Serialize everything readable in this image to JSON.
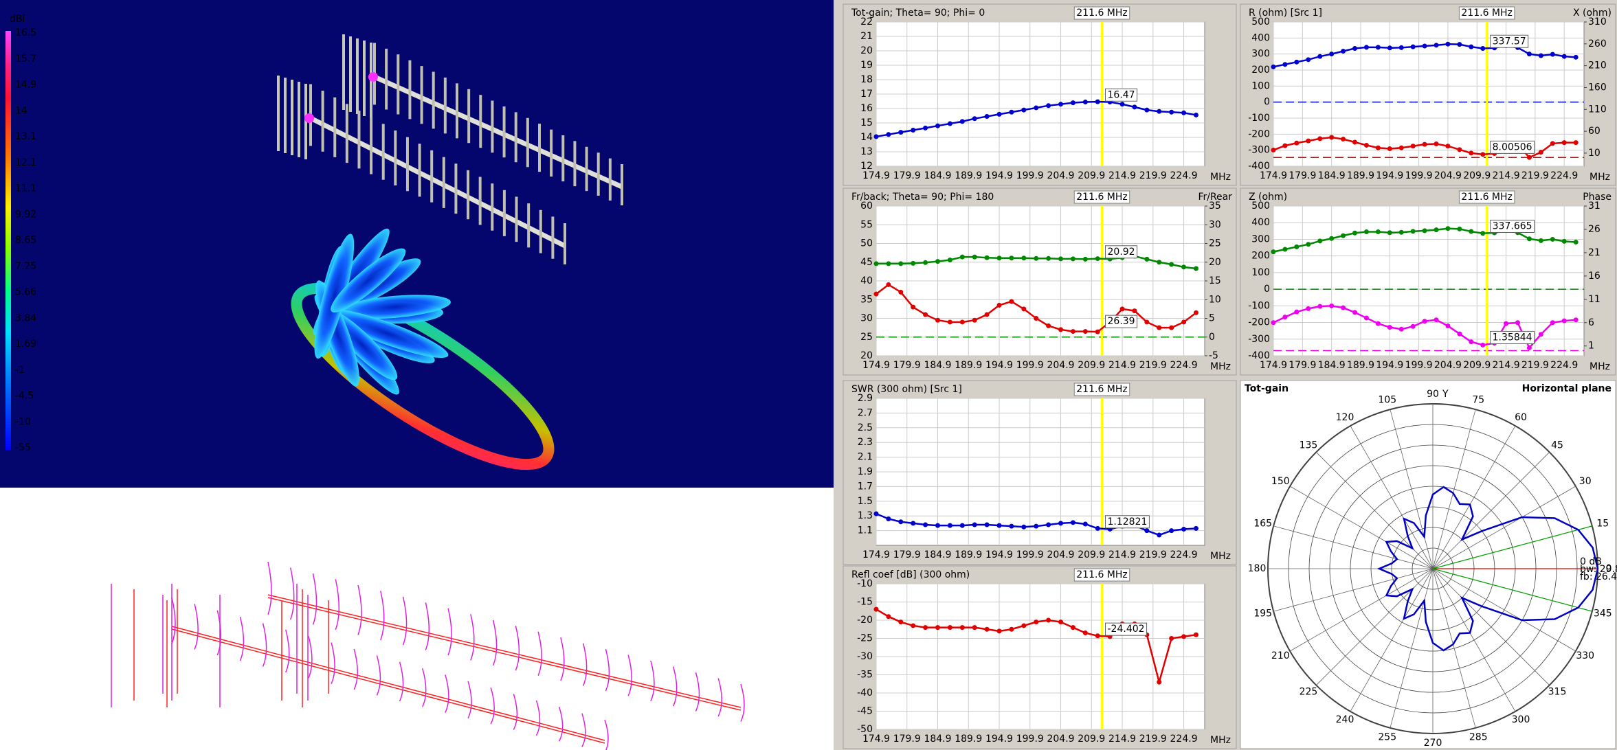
{
  "colorbar": {
    "title": "dBi",
    "labels": [
      16.5,
      15.7,
      14.9,
      14,
      13.1,
      12.1,
      11.1,
      9.92,
      8.65,
      7.25,
      5.66,
      3.84,
      1.69,
      -1,
      -4.5,
      -10,
      -55
    ]
  },
  "chart_data": [
    {
      "type": "line",
      "x_unit": "MHz",
      "grid": true,
      "zero_lines": true,
      "cursor_color": "#ffff00",
      "cursor": {
        "value": 211.6,
        "label": "211.6 MHz"
      },
      "x": [
        174.9,
        176.9,
        178.9,
        180.9,
        182.9,
        184.9,
        186.9,
        188.9,
        190.9,
        192.9,
        194.9,
        196.9,
        198.9,
        200.9,
        202.9,
        204.9,
        206.9,
        208.9,
        210.9,
        212.9,
        214.9,
        216.9,
        218.9,
        220.9,
        222.9,
        224.9,
        226.9
      ],
      "xlim": [
        174.9,
        228.3
      ],
      "xticks": [
        174.9,
        179.9,
        184.9,
        189.9,
        194.9,
        199.9,
        204.9,
        209.9,
        214.9,
        219.9,
        224.9
      ],
      "ylim": [
        12,
        22
      ],
      "yticks": [
        12,
        13,
        14,
        15,
        16,
        17,
        18,
        19,
        20,
        21,
        22
      ],
      "series": [
        {
          "name": "Tot-gain; Theta= 90; Phi= 0",
          "color": "#0000cc",
          "cursor_value": 16.47,
          "values": [
            14.05,
            14.2,
            14.35,
            14.5,
            14.65,
            14.8,
            14.95,
            15.1,
            15.3,
            15.45,
            15.6,
            15.75,
            15.9,
            16.05,
            16.2,
            16.3,
            16.4,
            16.45,
            16.47,
            16.45,
            16.3,
            16.1,
            15.9,
            15.8,
            15.75,
            15.7,
            15.55
          ]
        }
      ]
    },
    {
      "type": "line",
      "x_unit": "MHz",
      "grid": true,
      "zero_lines": true,
      "cursor_color": "#ffff00",
      "cursor": {
        "value": 211.6,
        "label": "211.6 MHz"
      },
      "x": [
        174.9,
        176.9,
        178.9,
        180.9,
        182.9,
        184.9,
        186.9,
        188.9,
        190.9,
        192.9,
        194.9,
        196.9,
        198.9,
        200.9,
        202.9,
        204.9,
        206.9,
        208.9,
        210.9,
        212.9,
        214.9,
        216.9,
        218.9,
        220.9,
        222.9,
        224.9,
        226.9
      ],
      "xlim": [
        174.9,
        228.3
      ],
      "xticks": [
        174.9,
        179.9,
        184.9,
        189.9,
        194.9,
        199.9,
        204.9,
        209.9,
        214.9,
        219.9,
        224.9
      ],
      "ylim": [
        20,
        60
      ],
      "yticks": [
        20,
        25,
        30,
        35,
        40,
        45,
        50,
        55,
        60
      ],
      "y2lim": [
        -5,
        35
      ],
      "y2ticks": [
        -5,
        0,
        5,
        10,
        15,
        20,
        25,
        30,
        35
      ],
      "series": [
        {
          "name": "Fr/back; Theta= 90; Phi= 180",
          "color": "#e00000",
          "cursor_value": 26.39,
          "values": [
            36.5,
            39,
            37,
            33,
            31,
            29.5,
            29,
            29,
            29.5,
            31,
            33.5,
            34.5,
            32.5,
            30,
            28,
            27,
            26.5,
            26.5,
            26.4,
            29,
            32.5,
            32,
            29,
            27.5,
            27.5,
            29,
            31.5
          ]
        },
        {
          "name": "Fr/Rear",
          "color": "#008800",
          "axis": "y2",
          "cursor_value": 20.92,
          "values": [
            19.6,
            19.6,
            19.6,
            19.7,
            19.9,
            20.2,
            20.6,
            21.4,
            21.4,
            21.2,
            21.1,
            21.1,
            21.1,
            21.0,
            21.0,
            20.9,
            20.9,
            20.8,
            20.95,
            20.85,
            21.2,
            21.6,
            20.8,
            20.0,
            19.4,
            18.7,
            18.3
          ]
        }
      ]
    },
    {
      "type": "line",
      "x_unit": "MHz",
      "grid": true,
      "zero_lines": true,
      "cursor_color": "#ffff00",
      "cursor": {
        "value": 211.6,
        "label": "211.6 MHz"
      },
      "x": [
        174.9,
        176.9,
        178.9,
        180.9,
        182.9,
        184.9,
        186.9,
        188.9,
        190.9,
        192.9,
        194.9,
        196.9,
        198.9,
        200.9,
        202.9,
        204.9,
        206.9,
        208.9,
        210.9,
        212.9,
        214.9,
        216.9,
        218.9,
        220.9,
        222.9,
        224.9,
        226.9
      ],
      "xlim": [
        174.9,
        228.3
      ],
      "xticks": [
        174.9,
        179.9,
        184.9,
        189.9,
        194.9,
        199.9,
        204.9,
        209.9,
        214.9,
        219.9,
        224.9
      ],
      "ylim": [
        0.9,
        2.9
      ],
      "yticks": [
        1.1,
        1.3,
        1.5,
        1.7,
        1.9,
        2.1,
        2.3,
        2.5,
        2.7,
        2.9
      ],
      "series": [
        {
          "name": "SWR (300 ohm) [Src 1]",
          "color": "#0000cc",
          "cursor_value": 1.12821,
          "values": [
            1.33,
            1.26,
            1.22,
            1.2,
            1.18,
            1.17,
            1.17,
            1.17,
            1.18,
            1.18,
            1.17,
            1.16,
            1.15,
            1.16,
            1.18,
            1.2,
            1.21,
            1.19,
            1.13,
            1.12,
            1.16,
            1.17,
            1.1,
            1.04,
            1.1,
            1.12,
            1.13
          ]
        }
      ]
    },
    {
      "type": "line",
      "x_unit": "MHz",
      "grid": true,
      "zero_lines": true,
      "cursor_color": "#ffff00",
      "cursor": {
        "value": 211.6,
        "label": "211.6 MHz"
      },
      "x": [
        174.9,
        176.9,
        178.9,
        180.9,
        182.9,
        184.9,
        186.9,
        188.9,
        190.9,
        192.9,
        194.9,
        196.9,
        198.9,
        200.9,
        202.9,
        204.9,
        206.9,
        208.9,
        210.9,
        212.9,
        214.9,
        216.9,
        218.9,
        220.9,
        222.9,
        224.9,
        226.9
      ],
      "xlim": [
        174.9,
        228.3
      ],
      "xticks": [
        174.9,
        179.9,
        184.9,
        189.9,
        194.9,
        199.9,
        204.9,
        209.9,
        214.9,
        219.9,
        224.9
      ],
      "ylim": [
        -50,
        -10
      ],
      "yticks": [
        -50,
        -45,
        -40,
        -35,
        -30,
        -25,
        -20,
        -15,
        -10
      ],
      "series": [
        {
          "name": "Refl coef [dB] (300 ohm)",
          "color": "#e00000",
          "cursor_value": -24.402,
          "values": [
            -17,
            -19,
            -20.5,
            -21.5,
            -22,
            -22,
            -22,
            -22,
            -22,
            -22.5,
            -23,
            -22.5,
            -21.5,
            -20.5,
            -20,
            -20.5,
            -22,
            -23.5,
            -24.3,
            -24.5,
            -21,
            -21,
            -24,
            -37,
            -25,
            -24.5,
            -24
          ]
        }
      ]
    },
    {
      "type": "line",
      "x_unit": "MHz",
      "grid": true,
      "zero_lines": true,
      "cursor_color": "#ffff00",
      "cursor": {
        "value": 211.6,
        "label": "211.6 MHz"
      },
      "x": [
        174.9,
        176.9,
        178.9,
        180.9,
        182.9,
        184.9,
        186.9,
        188.9,
        190.9,
        192.9,
        194.9,
        196.9,
        198.9,
        200.9,
        202.9,
        204.9,
        206.9,
        208.9,
        210.9,
        212.9,
        214.9,
        216.9,
        218.9,
        220.9,
        222.9,
        224.9,
        226.9
      ],
      "xlim": [
        174.9,
        228.3
      ],
      "xticks": [
        174.9,
        179.9,
        184.9,
        189.9,
        194.9,
        199.9,
        204.9,
        209.9,
        214.9,
        219.9,
        224.9
      ],
      "ylim": [
        -400,
        500
      ],
      "yticks": [
        -400,
        -300,
        -200,
        -100,
        0,
        100,
        200,
        300,
        400,
        500
      ],
      "y2lim": [
        -20,
        310
      ],
      "y2ticks": [
        10,
        60,
        110,
        160,
        210,
        260,
        310
      ],
      "series": [
        {
          "name": "R (ohm) [Src 1]",
          "color": "#0000cc",
          "cursor_value": 337.57,
          "values": [
            220,
            235,
            250,
            265,
            285,
            300,
            318,
            335,
            342,
            342,
            338,
            340,
            345,
            350,
            355,
            362,
            360,
            345,
            335,
            338,
            352,
            340,
            300,
            290,
            298,
            285,
            280
          ]
        },
        {
          "name": "X (ohm)",
          "color": "#e00000",
          "axis": "y2",
          "cursor_value": 8.00506,
          "values": [
            17,
            27,
            33,
            38,
            43,
            46,
            42,
            35,
            28,
            22,
            20,
            22,
            26,
            30,
            31,
            26,
            18,
            10,
            7,
            9,
            30,
            30,
            0,
            12,
            32,
            34,
            34
          ]
        }
      ]
    },
    {
      "type": "line",
      "x_unit": "MHz",
      "grid": true,
      "zero_lines": true,
      "cursor_color": "#ffff00",
      "cursor": {
        "value": 211.6,
        "label": "211.6 MHz"
      },
      "x": [
        174.9,
        176.9,
        178.9,
        180.9,
        182.9,
        184.9,
        186.9,
        188.9,
        190.9,
        192.9,
        194.9,
        196.9,
        198.9,
        200.9,
        202.9,
        204.9,
        206.9,
        208.9,
        210.9,
        212.9,
        214.9,
        216.9,
        218.9,
        220.9,
        222.9,
        224.9,
        226.9
      ],
      "xlim": [
        174.9,
        228.3
      ],
      "xticks": [
        174.9,
        179.9,
        184.9,
        189.9,
        194.9,
        199.9,
        204.9,
        209.9,
        214.9,
        219.9,
        224.9
      ],
      "ylim": [
        -400,
        500
      ],
      "yticks": [
        -400,
        -300,
        -200,
        -100,
        0,
        100,
        200,
        300,
        400,
        500
      ],
      "y2lim": [
        -1.1,
        31
      ],
      "y2ticks": [
        1,
        6,
        11,
        16,
        21,
        26,
        31
      ],
      "series": [
        {
          "name": "Z (ohm)",
          "color": "#008800",
          "cursor_value": 337.665,
          "values": [
            225,
            240,
            255,
            270,
            290,
            305,
            322,
            338,
            345,
            345,
            340,
            342,
            348,
            352,
            357,
            365,
            362,
            347,
            336,
            339,
            353,
            340,
            303,
            292,
            300,
            288,
            283
          ]
        },
        {
          "name": "Phase",
          "color": "#ee00ee",
          "axis": "y2",
          "cursor_value": 1.35844,
          "values": [
            6.0,
            7.2,
            8.3,
            9.0,
            9.5,
            9.6,
            9.2,
            8.2,
            7.0,
            5.8,
            5.0,
            4.6,
            5.2,
            6.3,
            6.6,
            5.3,
            3.6,
            1.9,
            1.2,
            1.6,
            5.8,
            6.0,
            0.6,
            3.5,
            6.0,
            6.4,
            6.6
          ]
        }
      ]
    },
    {
      "type": "polar",
      "title": "Tot-gain",
      "subtitle": "Horizontal plane",
      "axis_label": "Y",
      "color": "#0000c0",
      "thetaticks": [
        0,
        15,
        30,
        45,
        60,
        75,
        90,
        105,
        120,
        135,
        150,
        165,
        180,
        195,
        210,
        225,
        240,
        255,
        270,
        285,
        300,
        315,
        330,
        345
      ],
      "rlim": [
        -40,
        0
      ],
      "rgrid": [
        -35,
        -30,
        -25,
        -20,
        -15,
        -10,
        -5,
        0
      ],
      "theta": [
        0,
        7.5,
        15,
        22.5,
        30,
        37.5,
        45,
        52.5,
        60,
        67.5,
        75,
        82.5,
        90,
        97.5,
        105,
        112.5,
        120,
        127.5,
        135,
        142.5,
        150,
        157.5,
        165,
        172.5,
        180,
        187.5,
        195,
        202.5,
        210,
        217.5,
        225,
        232.5,
        240,
        247.5,
        255,
        262.5,
        270,
        277.5,
        285,
        292.5,
        300,
        307.5,
        315,
        322.5,
        330,
        337.5,
        345,
        352.5
      ],
      "values": [
        0,
        -0.9,
        -3.5,
        -8,
        -15,
        -25,
        -30,
        -24,
        -22,
        -23,
        -21,
        -20,
        -22,
        -27,
        -32,
        -28,
        -26,
        -30,
        -33,
        -29,
        -27,
        -29,
        -31,
        -30,
        -27,
        -30,
        -31,
        -29,
        -27,
        -29,
        -33,
        -30,
        -26,
        -28,
        -32,
        -27,
        -22,
        -20,
        -21,
        -23,
        -22,
        -24,
        -30,
        -25,
        -15,
        -8,
        -3.5,
        -0.9
      ],
      "annotations": [
        "0 dB",
        "bw: 29.8",
        "fb: 26.4 dB"
      ]
    }
  ]
}
